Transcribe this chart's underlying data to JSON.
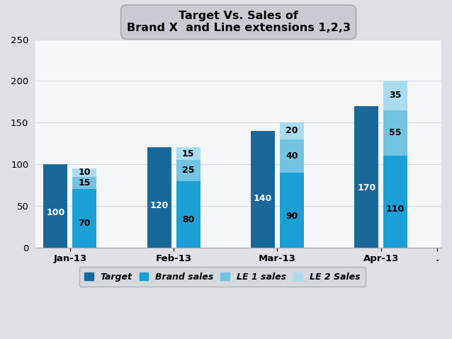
{
  "title_line1": "Target Vs. Sales of",
  "title_line2": "Brand X  and Line extensions 1,2,3",
  "months": [
    "Jan-13",
    "Feb-13",
    "Mar-13",
    "Apr-13"
  ],
  "dot_label": ".",
  "target": [
    100,
    120,
    140,
    170
  ],
  "brand_sales": [
    70,
    80,
    90,
    110
  ],
  "le1_sales": [
    15,
    25,
    40,
    55
  ],
  "le2_sales": [
    10,
    15,
    20,
    35
  ],
  "color_target": "#1a6899",
  "color_brand": "#1ba0d5",
  "color_le1": "#72c4e0",
  "color_le2": "#aadcf0",
  "ylim": [
    0,
    250
  ],
  "yticks": [
    0,
    50,
    100,
    150,
    200,
    250
  ],
  "legend_labels": [
    "Target",
    "Brand sales",
    "LE 1 sales",
    "LE 2 Sales"
  ],
  "bar_width": 0.28,
  "label_fontsize": 9,
  "fig_bg": "#dde0e4",
  "axis_bg": "#f5f6f8",
  "grid_color": "#d8dde5",
  "title_bg": "#c8ccd2",
  "legend_bg": "#d4d8dc"
}
